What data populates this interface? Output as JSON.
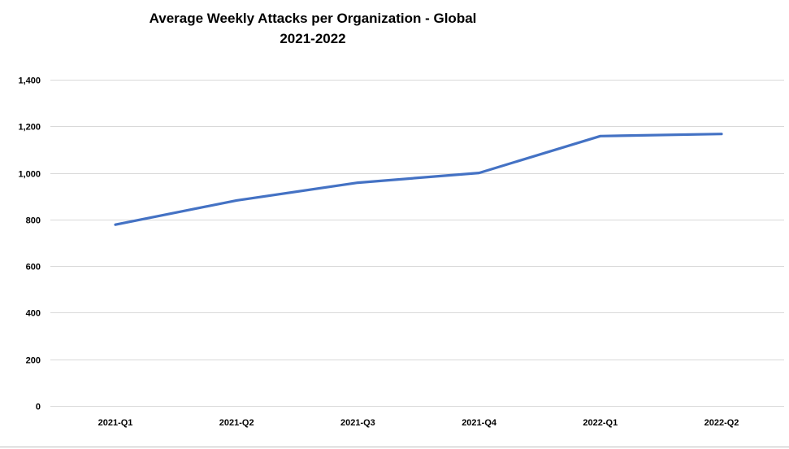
{
  "chart_data": {
    "type": "line",
    "title": "Average Weekly Attacks per Organization - Global",
    "subtitle": "2021-2022",
    "xlabel": "",
    "ylabel": "",
    "categories": [
      "2021-Q1",
      "2021-Q2",
      "2021-Q3",
      "2021-Q4",
      "2022-Q1",
      "2022-Q2"
    ],
    "series": [
      {
        "values": [
          778,
          882,
          958,
          1000,
          1158,
          1167
        ],
        "color": "#4472C4"
      }
    ],
    "ylim": [
      0,
      1400
    ],
    "yticks": [
      0,
      200,
      400,
      600,
      800,
      1000,
      1200,
      1400
    ],
    "ytick_labels": [
      "0",
      "200",
      "400",
      "600",
      "800",
      "1,000",
      "1,200",
      "1,400"
    ],
    "grid": true,
    "grid_color": "#d9d9d9",
    "legend": "none"
  }
}
